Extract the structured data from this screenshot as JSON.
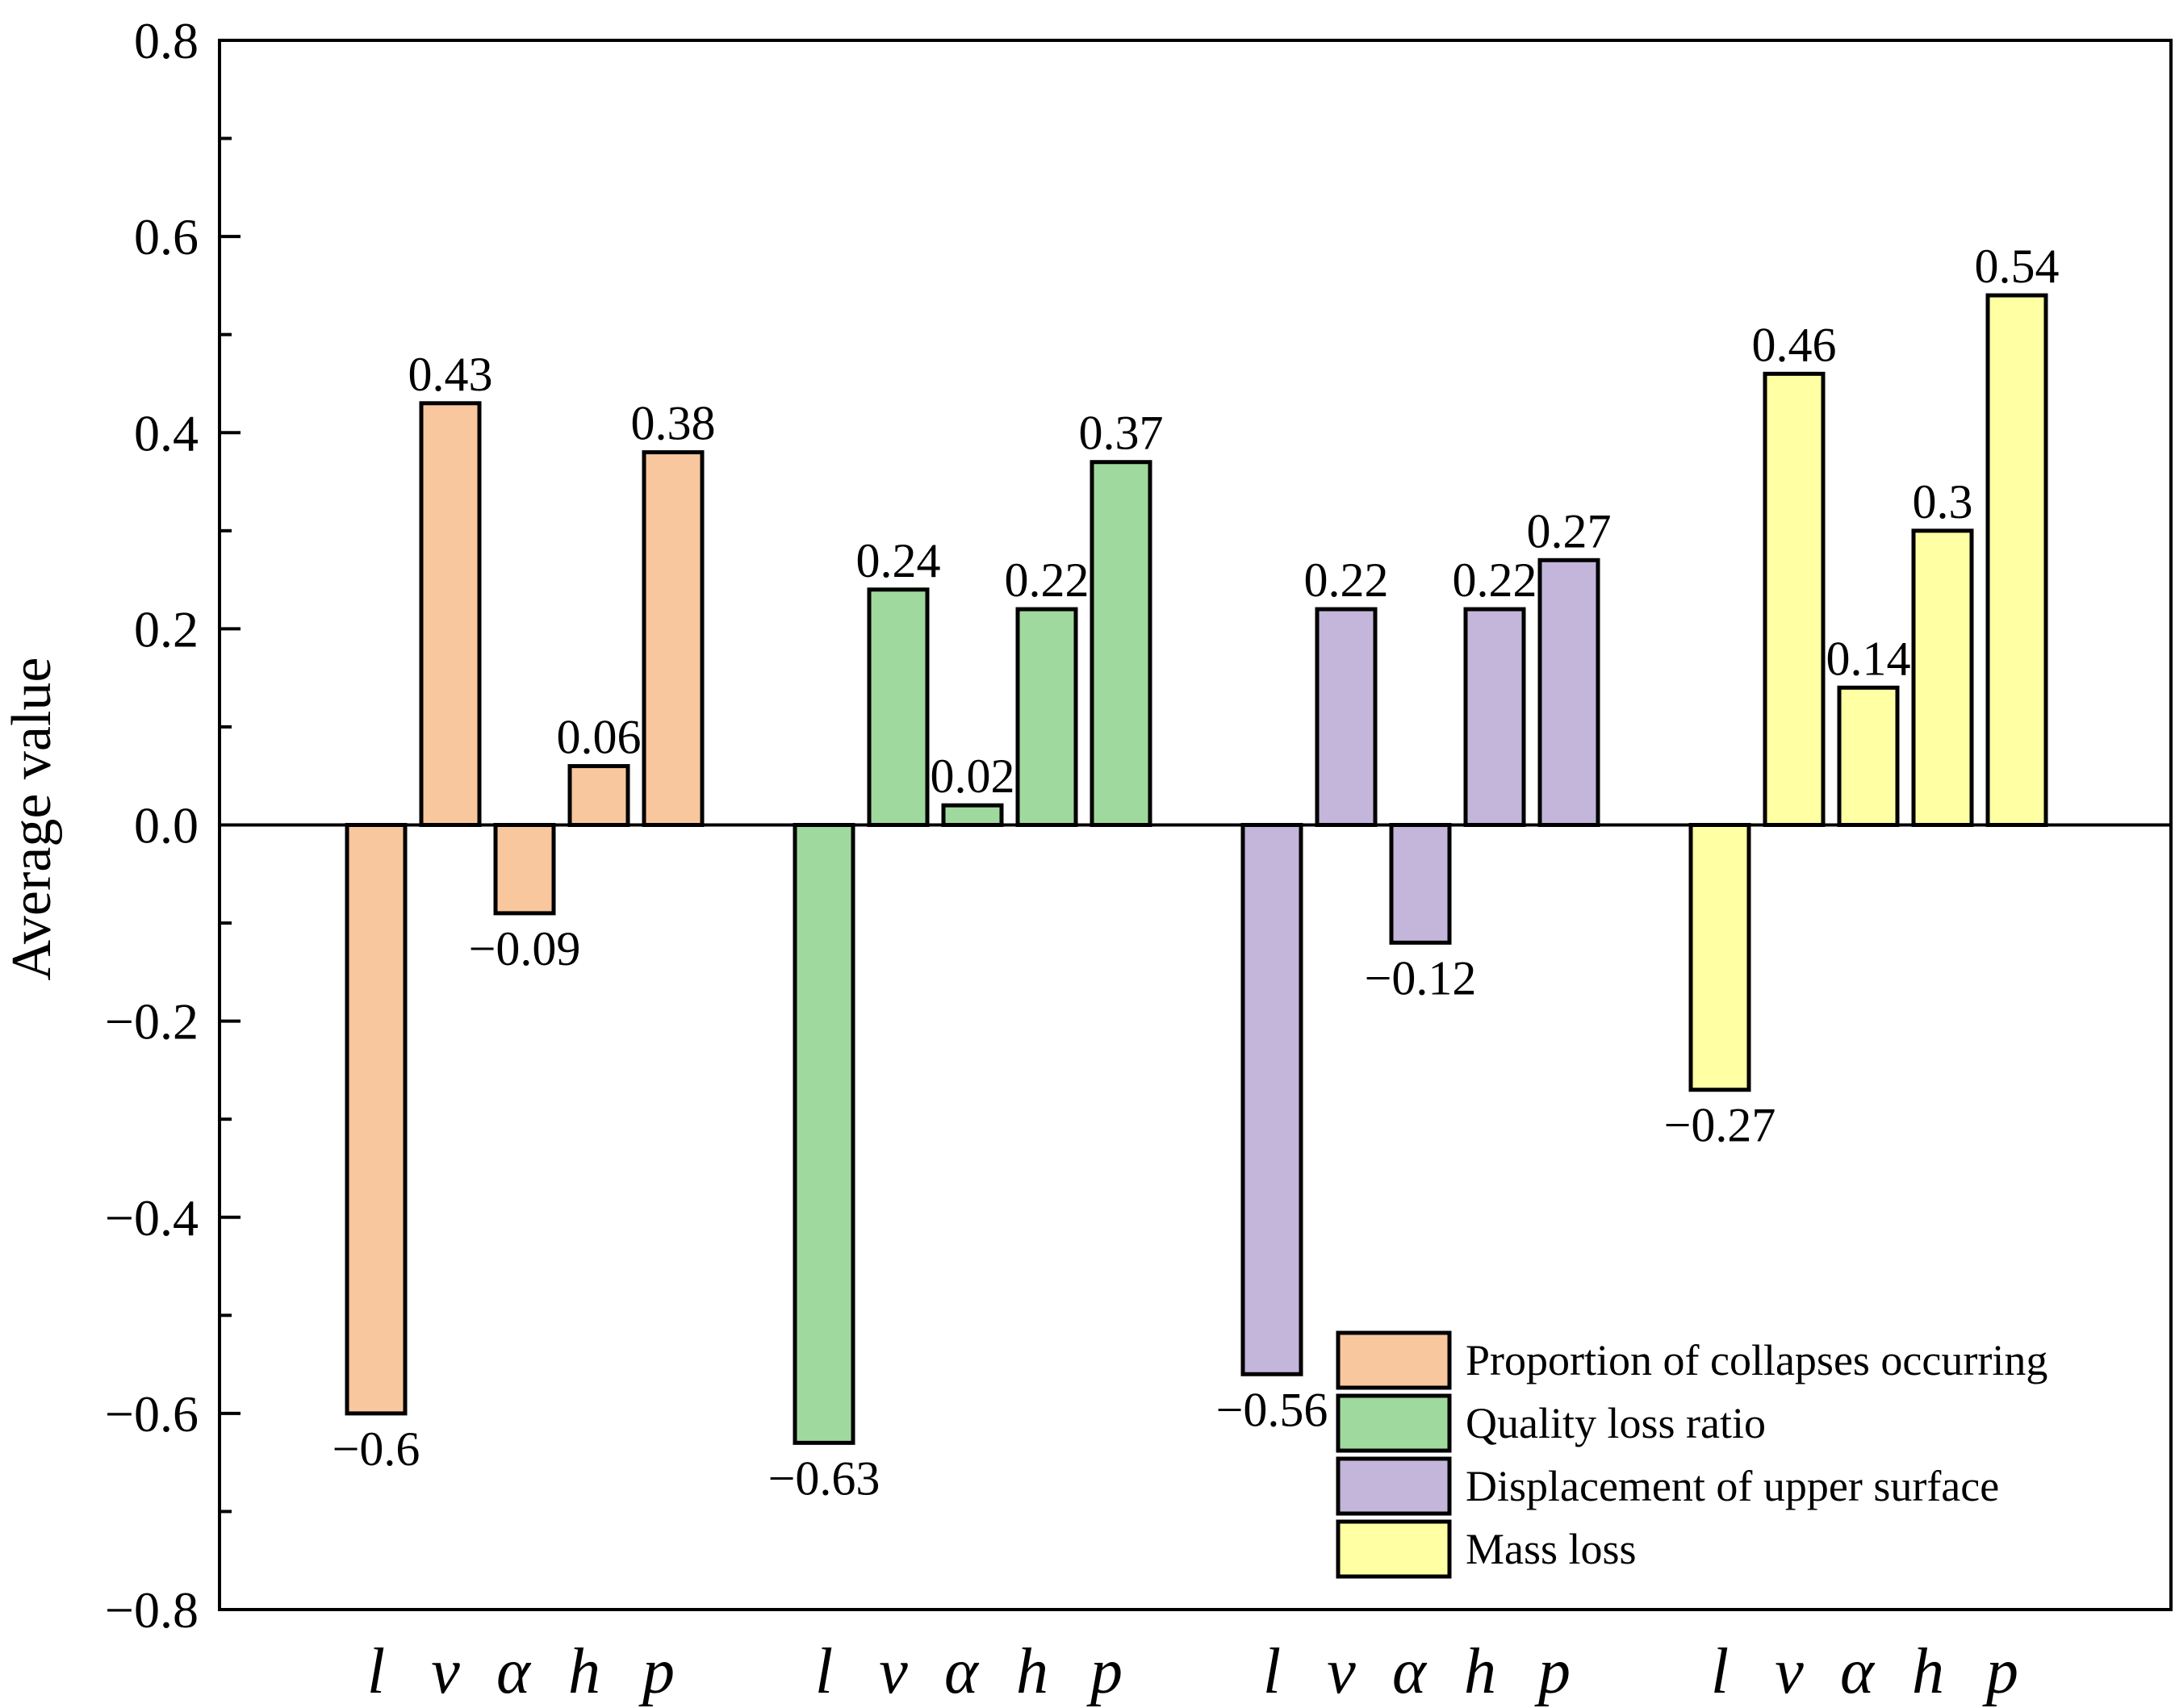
{
  "chart_data": {
    "type": "bar",
    "title": "",
    "xlabel": "",
    "ylabel": "Average value",
    "ylim": [
      -0.8,
      0.8
    ],
    "yticks": [
      0.8,
      0.6,
      0.4,
      0.2,
      0.0,
      -0.2,
      -0.4,
      -0.6,
      -0.8
    ],
    "ytick_labels": [
      "0.8",
      "0.6",
      "0.4",
      "0.2",
      "0.0",
      "−0.2",
      "−0.4",
      "−0.6",
      "−0.8"
    ],
    "categories": [
      "l",
      "v",
      "α",
      "h",
      "p"
    ],
    "legend_position": "bottom-right",
    "series": [
      {
        "name": "Proportion of collapses occurring",
        "color": "#F9C79E",
        "values": [
          -0.6,
          0.43,
          -0.09,
          0.06,
          0.38
        ],
        "labels": [
          "−0.6",
          "0.43",
          "−0.09",
          "0.06",
          "0.38"
        ]
      },
      {
        "name": "Quality loss ratio",
        "color": "#A0D99D",
        "values": [
          -0.63,
          0.24,
          0.02,
          0.22,
          0.37
        ],
        "labels": [
          "−0.63",
          "0.24",
          "0.02",
          "0.22",
          "0.37"
        ]
      },
      {
        "name": "Displacement of upper surface",
        "color": "#C3B6DA",
        "values": [
          -0.56,
          0.22,
          -0.12,
          0.22,
          0.27
        ],
        "labels": [
          "−0.56",
          "0.22",
          "−0.12",
          "0.22",
          "0.27"
        ]
      },
      {
        "name": "Mass loss",
        "color": "#FFFFA3",
        "values": [
          -0.27,
          0.46,
          0.14,
          0.3,
          0.54
        ],
        "labels": [
          "−0.27",
          "0.46",
          "0.14",
          "0.3",
          "0.54"
        ]
      }
    ]
  }
}
